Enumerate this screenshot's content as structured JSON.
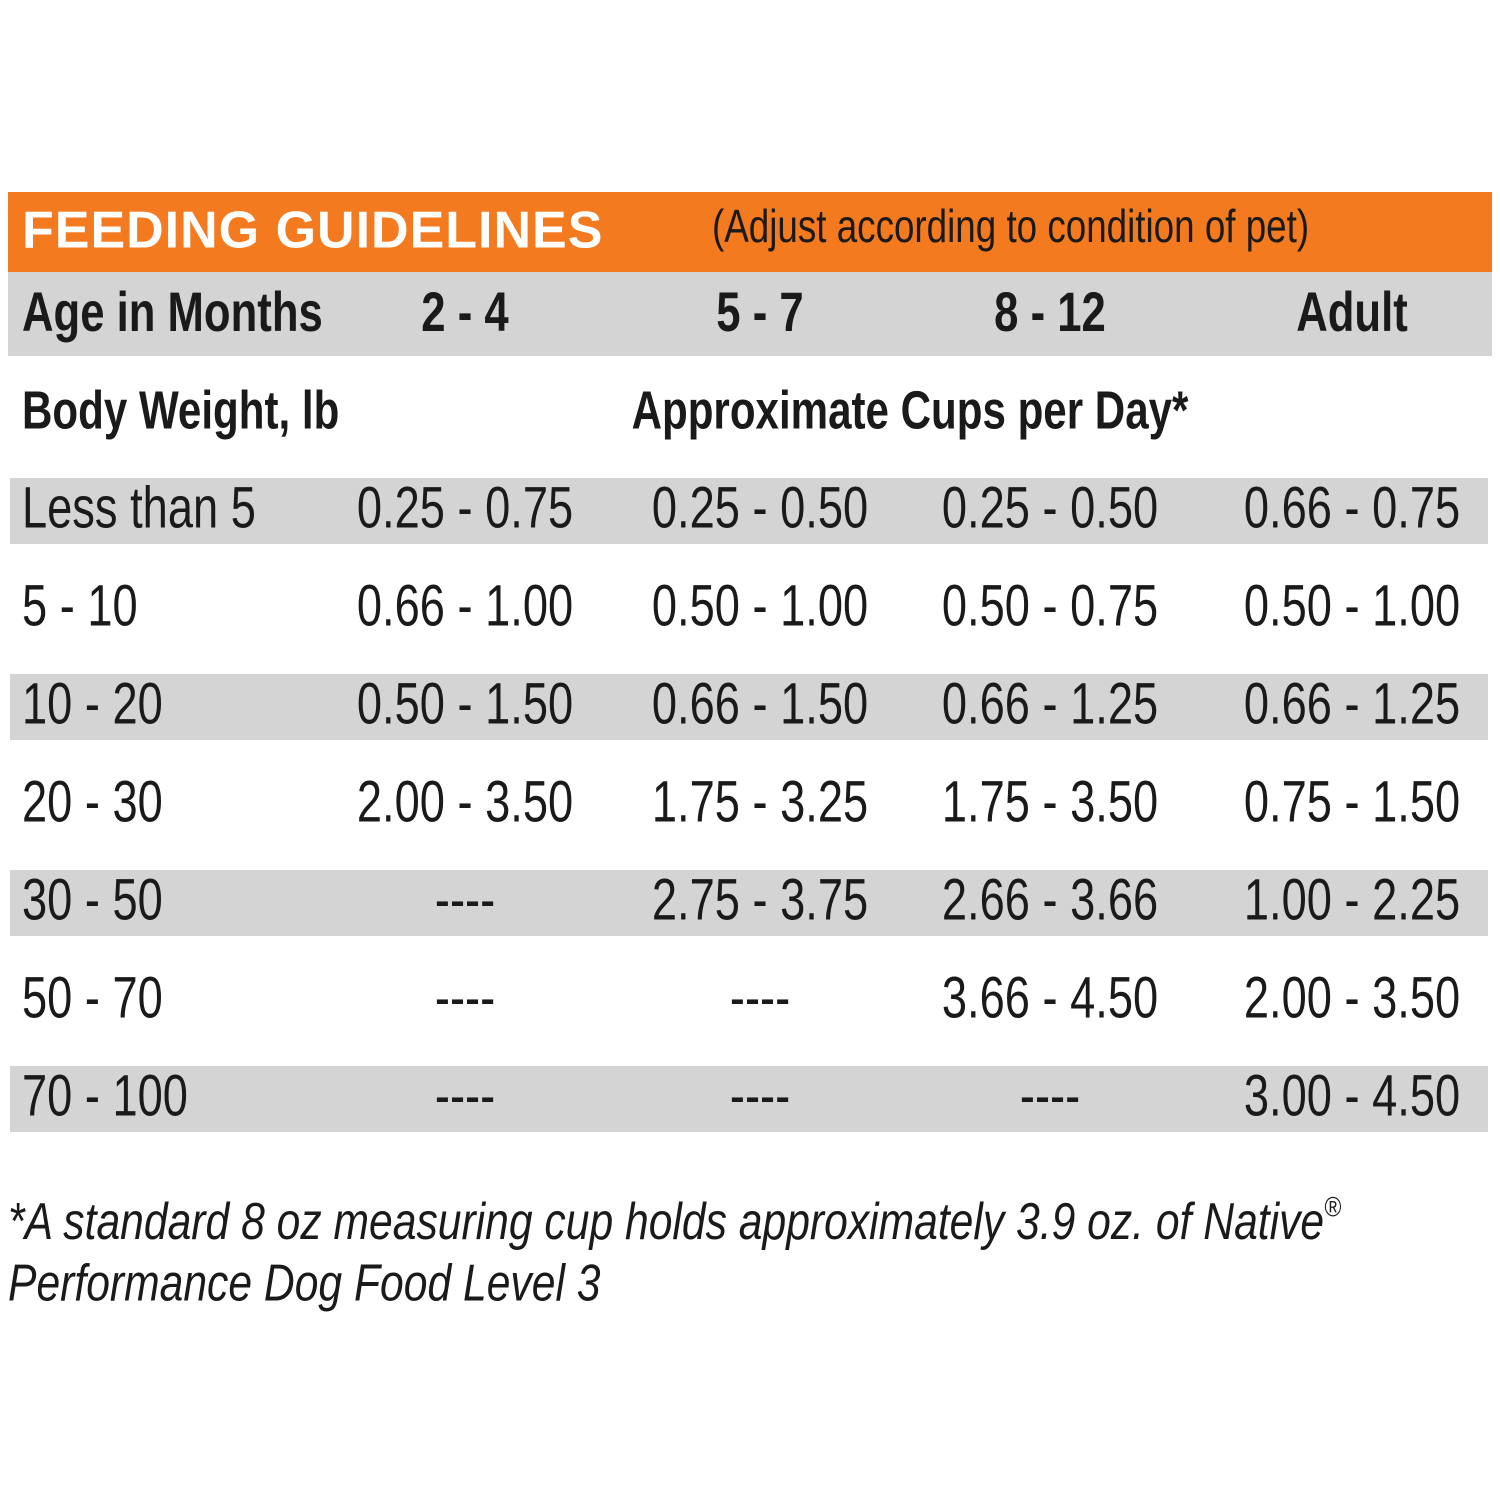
{
  "header": {
    "title": "FEEDING GUIDELINES",
    "subtitle": "(Adjust according to condition of pet)"
  },
  "table": {
    "age_header": [
      "Age in Months",
      "2 - 4",
      "5 - 7",
      "8 - 12",
      "Adult"
    ],
    "subheader": {
      "weight": "Body Weight, lb",
      "cups": "Approximate Cups per Day*"
    },
    "rows": [
      [
        "Less than 5",
        "0.25 - 0.75",
        "0.25 - 0.50",
        "0.25 - 0.50",
        "0.66 - 0.75"
      ],
      [
        "5 - 10",
        "0.66 - 1.00",
        "0.50 - 1.00",
        "0.50 - 0.75",
        "0.50 - 1.00"
      ],
      [
        "10 - 20",
        "0.50 - 1.50",
        "0.66 - 1.50",
        "0.66 - 1.25",
        "0.66 - 1.25"
      ],
      [
        "20 - 30",
        "2.00 - 3.50",
        "1.75 - 3.25",
        "1.75 - 3.50",
        "0.75 - 1.50"
      ],
      [
        "30 - 50",
        "----",
        "2.75 - 3.75",
        "2.66 - 3.66",
        "1.00 - 2.25"
      ],
      [
        "50 - 70",
        "----",
        "----",
        "3.66 - 4.50",
        "2.00 - 3.50"
      ],
      [
        "70 - 100",
        "----",
        "----",
        "----",
        "3.00 - 4.50"
      ]
    ]
  },
  "footnote": {
    "line1": "*A standard 8 oz measuring cup holds approximately 3.9 oz. of Native",
    "mark": "®",
    "line2": "Performance Dog Food Level 3"
  }
}
